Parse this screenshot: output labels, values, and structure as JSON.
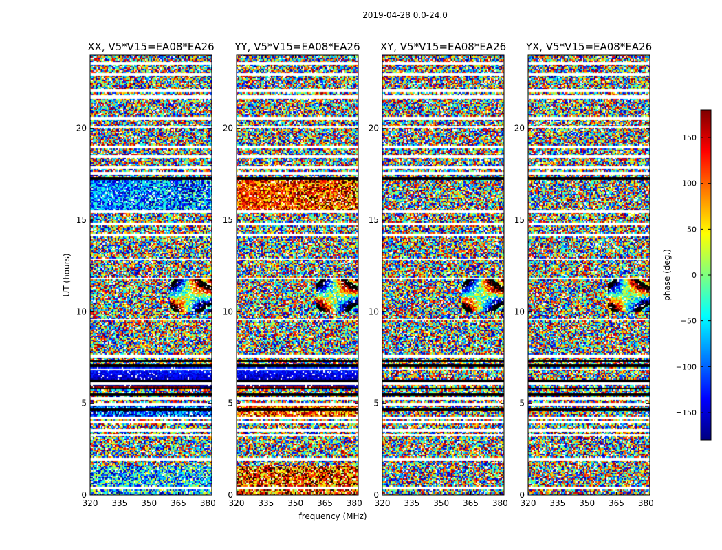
{
  "suptitle": "2019-04-28 0.0-24.0",
  "chart_data": {
    "type": "heatmap",
    "xlabel": "frequency (MHz)",
    "ylabel": "UT (hours)",
    "xlim": [
      320,
      382
    ],
    "ylim": [
      0,
      24
    ],
    "x_ticks": [
      320,
      335,
      350,
      365,
      380
    ],
    "y_ticks": [
      0,
      5,
      10,
      15,
      20
    ],
    "panels": [
      {
        "title": "XX, V5*V15=EA08*EA26",
        "mode": "xx"
      },
      {
        "title": "YY, V5*V15=EA08*EA26",
        "mode": "yy"
      },
      {
        "title": "XY, V5*V15=EA08*EA26",
        "mode": "xy"
      },
      {
        "title": "YX, V5*V15=EA08*EA26",
        "mode": "yx"
      }
    ],
    "blank_rows_hours": [
      0.4,
      2.0,
      3.3,
      3.55,
      4.0,
      4.25,
      5.0,
      5.3,
      6.1,
      6.9,
      7.6,
      9.6,
      11.85,
      12.9,
      14.2,
      14.8,
      15.5,
      17.6,
      17.9,
      18.5,
      19.0,
      20.1,
      20.6,
      21.7,
      21.8,
      22.1,
      23.0,
      23.6
    ],
    "dark_rows_hours": [
      4.7,
      5.5,
      5.85,
      6.25,
      7.1,
      7.35,
      17.3
    ],
    "colorbar": {
      "label": "phase (deg.)",
      "range": [
        -180,
        180
      ],
      "ticks": [
        150,
        100,
        50,
        0,
        -50,
        -100,
        -150
      ],
      "tick_labels": [
        "150",
        "100",
        "50",
        "0",
        "−50",
        "−100",
        "−150"
      ],
      "colormap": "jet",
      "stops": [
        "#00007f",
        "#0000ff",
        "#007fff",
        "#00ffff",
        "#7fff7f",
        "#ffff00",
        "#ff7f00",
        "#ff0000",
        "#7f0000"
      ]
    }
  }
}
